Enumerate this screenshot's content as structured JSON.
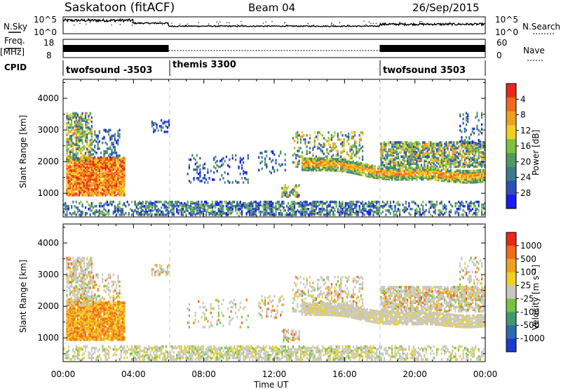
{
  "header": {
    "radar": "Saskatoon (fitACF)",
    "beam": "Beam 04",
    "date": "26/Sep/2015"
  },
  "left_labels": {
    "nsky": "N.Sky",
    "freq": "Freq.",
    "freq_unit": "[MHz]",
    "cpid": "CPID"
  },
  "right_labels": {
    "nsearch": "N.Search",
    "nave": "Nave"
  },
  "chart_data": [
    {
      "type": "line",
      "name": "noise-panel",
      "ylabel_left": "N.Sky",
      "ylabel_right": "N.Search",
      "yticks_left": [
        "10^5",
        "10^0"
      ],
      "yticks_right": [
        "10^5",
        "10^0"
      ]
    },
    {
      "type": "line",
      "name": "frequency-panel",
      "ylabel_left": "Freq. [MHz]",
      "ylabel_right": "Nave",
      "yticks_left": [
        "18",
        "8"
      ],
      "yticks_right": [
        "60",
        "0"
      ],
      "segments": [
        {
          "start_h": 0,
          "end_h": 6,
          "mode": "twofsound"
        },
        {
          "start_h": 6,
          "end_h": 18,
          "mode": "themis"
        },
        {
          "start_h": 18,
          "end_h": 24,
          "mode": "twofsound"
        }
      ]
    },
    {
      "type": "table",
      "name": "cpid-strip",
      "entries": [
        {
          "label": "twofsound -3503",
          "start_h": 0
        },
        {
          "label": "themis 3300",
          "start_h": 6
        },
        {
          "label": "twofsound 3503",
          "start_h": 18
        }
      ]
    },
    {
      "type": "heatmap",
      "name": "power-panel",
      "ylabel": "Slant Range [km]",
      "yticks": [
        "1000",
        "2000",
        "3000",
        "4000"
      ],
      "ylim": [
        250,
        4600
      ],
      "xlim": [
        0,
        24
      ],
      "colorbar": {
        "label": "Power [dB]",
        "ticks": [
          "4",
          "8",
          "12",
          "16",
          "20",
          "24",
          "28"
        ],
        "colors": [
          "#1a1af0",
          "#2e4fb8",
          "#3d7a8a",
          "#4f9a5e",
          "#7fc23c",
          "#f0d020",
          "#f0a020",
          "#f06a18",
          "#e82818"
        ]
      }
    },
    {
      "type": "heatmap",
      "name": "velocity-panel",
      "ylabel": "Slant Range [km]",
      "yticks": [
        "1000",
        "2000",
        "3000",
        "4000"
      ],
      "ylim": [
        250,
        4600
      ],
      "xlim": [
        0,
        24
      ],
      "colorbar": {
        "label": "Velocity [m s⁻¹]",
        "ticks": [
          "1000",
          "500",
          "100",
          "25",
          "-25",
          "-100",
          "-500",
          "-1000"
        ],
        "colors": [
          "#1a3ad0",
          "#2e6ab0",
          "#3e9a6a",
          "#7ac23c",
          "#c8c8c0",
          "#f0d020",
          "#f0a020",
          "#f06a18",
          "#e82818"
        ]
      }
    }
  ],
  "xaxis": {
    "ticks": [
      "00:00",
      "04:00",
      "08:00",
      "12:00",
      "16:00",
      "20:00",
      "00:00"
    ],
    "label": "Time UT"
  }
}
